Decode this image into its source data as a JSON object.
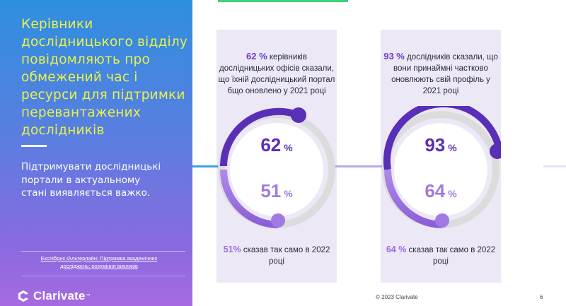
{
  "sidebar": {
    "title_lines": [
      "Керівники",
      "дослідницького відділу",
      "повідомляють про",
      "обмежений час і",
      "ресурси для підтримки",
      "перевантажених",
      "дослідників"
    ],
    "subtitle_lines": [
      "Підтримувати дослідницькі",
      "портали в актуальному",
      "стані виявляється важко."
    ],
    "source_lines": [
      "Екслібрис іАльтерлайн: Підтримка академічних",
      "досліджень: розуміння викликів"
    ]
  },
  "brand": {
    "name": "Clarivate",
    "tm": "™"
  },
  "footer": {
    "copyright": "© 2023 Clarivate",
    "page": "6"
  },
  "colors": {
    "accent_dark": "#5a2fb8",
    "accent_light": "#a07ae2",
    "panel": "#ece8f6",
    "title_yellow": "#e9f24a"
  },
  "left_panel": {
    "headline_pct": "62 %",
    "headline_lines": [
      " керівників",
      "дослідницьких офісів сказали,",
      "що їхній дослідницький портал",
      "бщо оновлено у 2021 році"
    ],
    "value_2021": "62",
    "value_2022": "51",
    "unit": "%",
    "footnote_pct": "51%",
    "footnote_lines": [
      " сказав так само в 2022",
      "році"
    ]
  },
  "right_panel": {
    "headline_pct": "93 %",
    "headline_lines": [
      " дослідників сказали, що",
      "вони принаймні частково",
      "оновлюють свій профіль у",
      "2021 році"
    ],
    "value_2021": "93",
    "value_2022": "64",
    "unit": "%",
    "footnote_pct": "64 %",
    "footnote_lines": [
      " сказав так само в 2022",
      "році"
    ]
  }
}
